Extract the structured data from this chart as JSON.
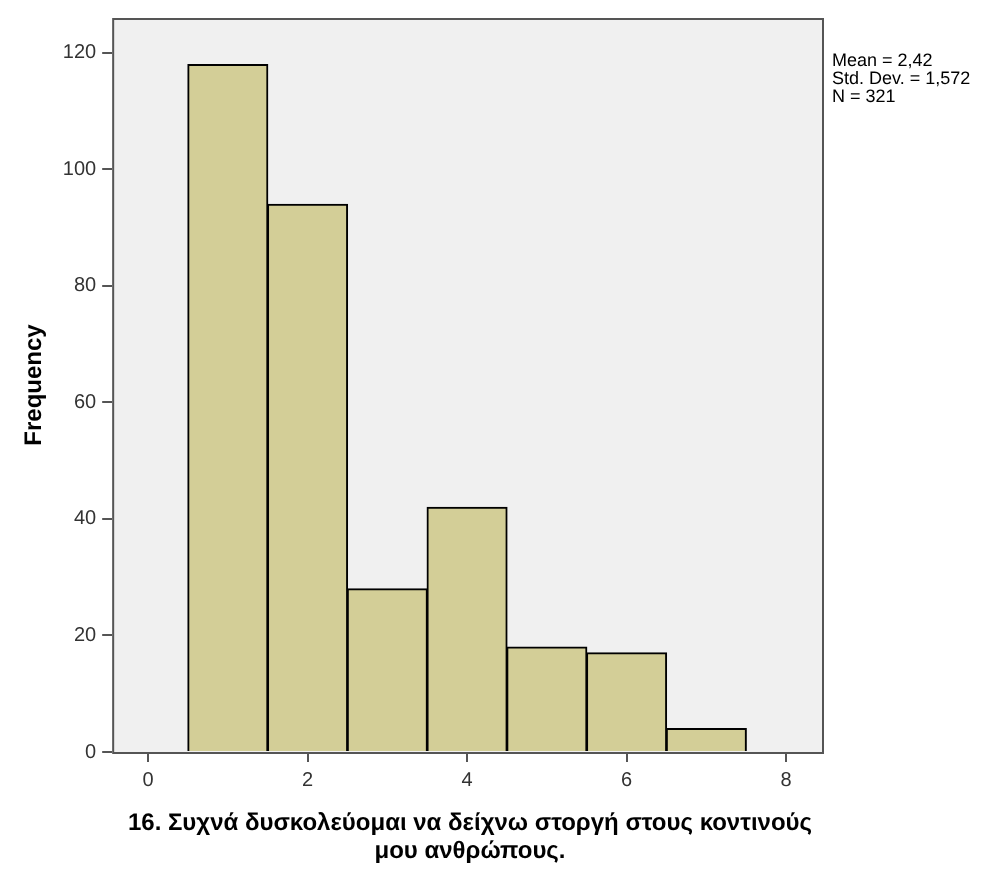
{
  "chart_data": {
    "type": "histogram",
    "xlabel": "16. Συχνά δυσκολεύομαι να δείχνω στοργή στους κοντινούς μου ανθρώπους.",
    "ylabel": "Frequency",
    "bins": [
      0.5,
      1.5,
      2.5,
      3.5,
      4.5,
      5.5,
      6.5,
      7.5
    ],
    "values": [
      118,
      94,
      28,
      42,
      18,
      17,
      4
    ],
    "color": "#d3ce97",
    "xlim": [
      -0.45,
      8.45
    ],
    "xticks": [
      0,
      2,
      4,
      6,
      8
    ],
    "ylim": [
      0,
      126
    ],
    "yticks": [
      0,
      20,
      40,
      60,
      80,
      100,
      120
    ],
    "grid": false,
    "legend": false,
    "annotations": [
      "Mean = 2,42",
      "Std. Dev. = 1,572",
      "N = 321"
    ]
  }
}
